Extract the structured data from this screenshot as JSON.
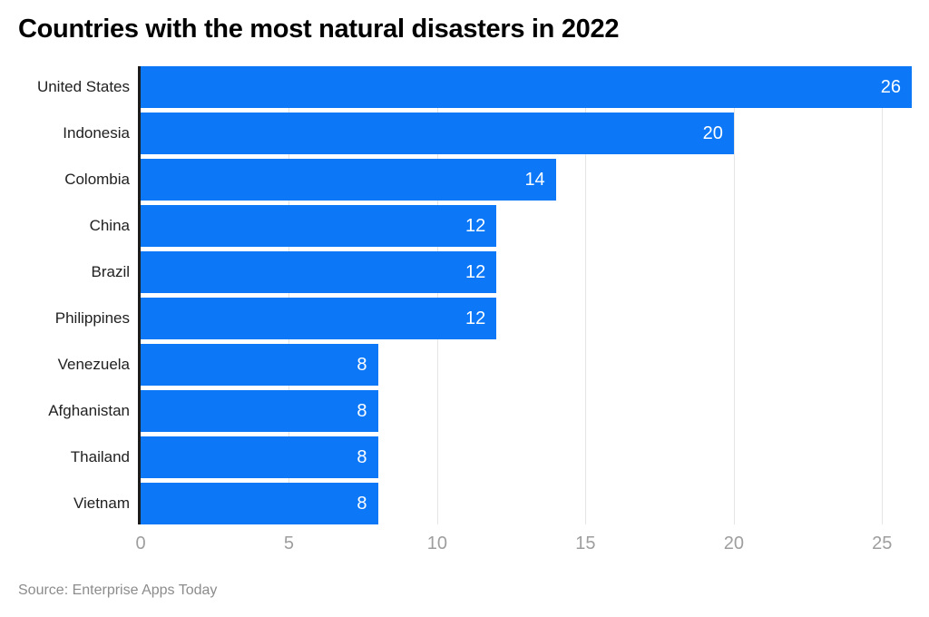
{
  "title": "Countries with the most natural disasters in 2022",
  "source": "Source: Enterprise Apps Today",
  "colors": {
    "background": "#ffffff",
    "bar": "#0c78f7",
    "axis_line": "#1c1c1c",
    "grid": "#e5e5e5",
    "tick_label": "#9e9e9e",
    "category_label": "#212121",
    "value_label": "#ffffff",
    "title": "#000000",
    "source": "#8c8c8c"
  },
  "chart_data": {
    "type": "bar",
    "orientation": "horizontal",
    "title": "Countries with the most natural disasters in 2022",
    "categories": [
      "United States",
      "Indonesia",
      "Colombia",
      "China",
      "Brazil",
      "Philippines",
      "Venezuela",
      "Afghanistan",
      "Thailand",
      "Vietnam"
    ],
    "values": [
      26,
      20,
      14,
      12,
      12,
      12,
      8,
      8,
      8,
      8
    ],
    "xlabel": "",
    "ylabel": "",
    "xlim": [
      0,
      26
    ],
    "xticks": [
      0,
      5,
      10,
      15,
      20,
      25
    ],
    "grid": true,
    "legend": false,
    "value_labels": "inside-end",
    "source": "Source: Enterprise Apps Today"
  }
}
